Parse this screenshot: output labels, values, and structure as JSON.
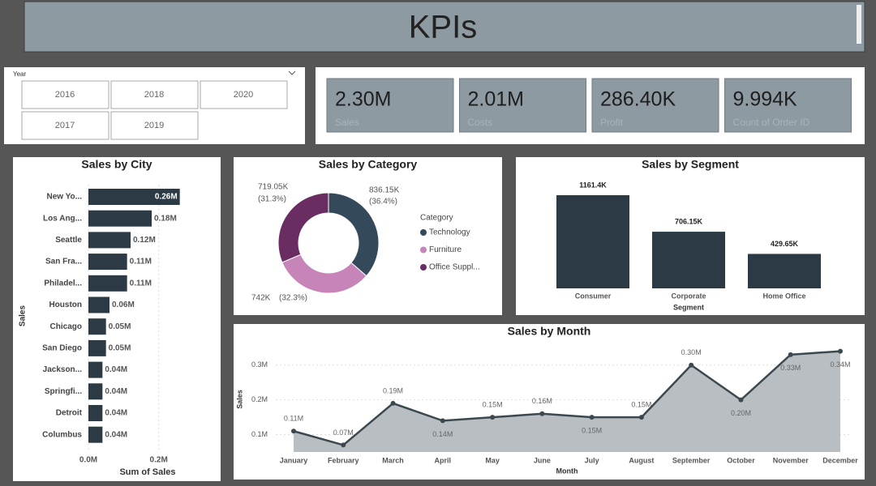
{
  "header": {
    "title": "KPIs"
  },
  "slicer": {
    "title": "Year",
    "items": [
      "2016",
      "2018",
      "2020",
      "2017",
      "2019"
    ]
  },
  "kpis": [
    {
      "value": "2.30M",
      "label": "Sales"
    },
    {
      "value": "2.01M",
      "label": "Costs"
    },
    {
      "value": "286.40K",
      "label": "Profit"
    },
    {
      "value": "9.994K",
      "label": "Count of Order ID"
    }
  ],
  "chart_data": [
    {
      "type": "bar",
      "orientation": "horizontal",
      "title": "Sales by City",
      "categories": [
        "New Yo...",
        "Los Ang...",
        "Seattle",
        "San Fra...",
        "Philadel...",
        "Houston",
        "Chicago",
        "San Diego",
        "Jackson...",
        "Springfi...",
        "Detroit",
        "Columbus"
      ],
      "values": [
        0.26,
        0.18,
        0.12,
        0.11,
        0.11,
        0.06,
        0.05,
        0.05,
        0.04,
        0.04,
        0.04,
        0.04
      ],
      "value_labels": [
        "0.26M",
        "0.18M",
        "0.12M",
        "0.11M",
        "0.11M",
        "0.06M",
        "0.05M",
        "0.05M",
        "0.04M",
        "0.04M",
        "0.04M",
        "0.04M"
      ],
      "color": "#2b3a44",
      "xlim": [
        0,
        0.3
      ],
      "xticks": [
        {
          "value": 0,
          "label": "0.0M"
        },
        {
          "value": 0.2,
          "label": "0.2M"
        }
      ],
      "x_label": "Sum of Sales",
      "y_label": "Sales",
      "grid": true
    },
    {
      "type": "donut",
      "title": "Sales by Category",
      "legend_title": "Category",
      "series": [
        {
          "name": "Technology",
          "color": "#34495a",
          "values": [
            836.15
          ]
        },
        {
          "name": "Furniture",
          "color": "#c684b8",
          "values": [
            742
          ]
        },
        {
          "name": "Office Suppl...",
          "color": "#6a2d62",
          "values": [
            719.05
          ]
        }
      ],
      "value_labels": [
        "836.15K",
        "742K",
        "719.05K"
      ],
      "percent_labels": [
        "(36.4%)",
        "(32.3%)",
        "(31.3%)"
      ]
    },
    {
      "type": "bar",
      "title": "Sales by Segment",
      "categories": [
        "Consumer",
        "Corporate",
        "Home Office"
      ],
      "values": [
        1161.4,
        706.15,
        429.65
      ],
      "value_labels": [
        "1161.4K",
        "706.15K",
        "429.65K"
      ],
      "color": "#2b3a44",
      "x_label": "Segment"
    },
    {
      "type": "area",
      "title": "Sales by Month",
      "categories": [
        "January",
        "February",
        "March",
        "April",
        "May",
        "June",
        "July",
        "August",
        "September",
        "October",
        "November",
        "December"
      ],
      "values": [
        0.11,
        0.07,
        0.19,
        0.14,
        0.15,
        0.16,
        0.15,
        0.15,
        0.3,
        0.2,
        0.33,
        0.34
      ],
      "value_labels": [
        "0.11M",
        "0.07M",
        "0.19M",
        "0.14M",
        "0.15M",
        "0.16M",
        "0.15M",
        "0.15M",
        "0.30M",
        "0.20M",
        "0.33M",
        "0.34M"
      ],
      "color": "#3c4850",
      "fill": "#b9bec2",
      "ylim": [
        0.05,
        0.36
      ],
      "yticks": [
        {
          "value": 0.1,
          "label": "0.1M"
        },
        {
          "value": 0.2,
          "label": "0.2M"
        },
        {
          "value": 0.3,
          "label": "0.3M"
        }
      ],
      "x_label": "Month",
      "y_label": "Sales",
      "grid": true
    }
  ]
}
